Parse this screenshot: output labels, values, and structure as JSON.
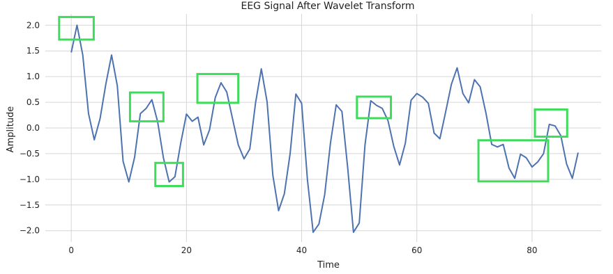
{
  "chart_data": {
    "type": "line",
    "title": "EEG Signal After Wavelet Transform",
    "xlabel": "Time",
    "ylabel": "Amplitude",
    "xlim": [
      -4.5,
      92
    ],
    "ylim": [
      -2.22,
      2.22
    ],
    "xticks": [
      0,
      20,
      40,
      60,
      80
    ],
    "yticks": [
      -2.0,
      -1.5,
      -1.0,
      -0.5,
      0.0,
      0.5,
      1.0,
      1.5,
      2.0
    ],
    "ytick_labels": [
      "−2.0",
      "−1.5",
      "−1.0",
      "−0.5",
      "0.0",
      "0.5",
      "1.0",
      "1.5",
      "2.0"
    ],
    "grid": true,
    "colors": {
      "line": "#4c72b0",
      "highlight": "#3ddc5a",
      "grid": "#d6d6d6"
    },
    "series": [
      {
        "x": [
          0,
          1,
          2,
          3,
          4,
          5,
          6,
          7,
          8,
          9,
          10,
          11,
          12,
          13,
          14,
          15,
          16,
          17,
          18,
          19,
          20,
          21,
          22,
          23,
          24,
          25,
          26,
          27,
          28,
          29,
          30,
          31,
          32,
          33,
          34,
          35,
          36,
          37,
          38,
          39,
          40,
          41,
          42,
          43,
          44,
          45,
          46,
          47,
          48,
          49,
          50,
          51,
          52,
          53,
          54,
          55,
          56,
          57,
          58,
          59,
          60,
          61,
          62,
          63,
          64,
          65,
          66,
          67,
          68,
          69,
          70,
          71,
          72,
          73,
          74,
          75,
          76,
          77,
          78,
          79,
          80,
          81,
          82,
          83,
          84,
          85,
          86,
          87,
          88
        ],
        "y": [
          1.47,
          2.0,
          1.42,
          0.28,
          -0.23,
          0.18,
          0.85,
          1.42,
          0.82,
          -0.65,
          -1.05,
          -0.57,
          0.28,
          0.38,
          0.55,
          0.12,
          -0.58,
          -1.05,
          -0.95,
          -0.3,
          0.27,
          0.13,
          0.21,
          -0.33,
          -0.04,
          0.59,
          0.88,
          0.7,
          0.18,
          -0.33,
          -0.6,
          -0.41,
          0.49,
          1.15,
          0.51,
          -0.92,
          -1.61,
          -1.28,
          -0.5,
          0.66,
          0.48,
          -1.0,
          -2.03,
          -1.87,
          -1.3,
          -0.3,
          0.45,
          0.32,
          -0.78,
          -2.03,
          -1.85,
          -0.33,
          0.53,
          0.44,
          0.38,
          0.14,
          -0.36,
          -0.72,
          -0.3,
          0.54,
          0.67,
          0.6,
          0.48,
          -0.1,
          -0.21,
          0.31,
          0.85,
          1.17,
          0.67,
          0.49,
          0.94,
          0.8,
          0.29,
          -0.32,
          -0.37,
          -0.32,
          -0.78,
          -0.98,
          -0.51,
          -0.58,
          -0.76,
          -0.66,
          -0.5,
          0.07,
          0.04,
          -0.15,
          -0.7,
          -0.98,
          -0.48
        ]
      }
    ],
    "highlight_boxes": [
      {
        "x0": -2.1,
        "x1": 3.9,
        "y0": 1.72,
        "y1": 2.16
      },
      {
        "x0": 10.2,
        "x1": 16.0,
        "y0": 0.13,
        "y1": 0.69
      },
      {
        "x0": 14.6,
        "x1": 19.4,
        "y0": -1.13,
        "y1": -0.68
      },
      {
        "x0": 21.9,
        "x1": 29.0,
        "y0": 0.49,
        "y1": 1.05
      },
      {
        "x0": 49.6,
        "x1": 55.5,
        "y0": 0.19,
        "y1": 0.61
      },
      {
        "x0": 70.7,
        "x1": 82.8,
        "y0": -1.04,
        "y1": -0.24
      },
      {
        "x0": 80.5,
        "x1": 86.1,
        "y0": -0.17,
        "y1": 0.36
      }
    ]
  }
}
